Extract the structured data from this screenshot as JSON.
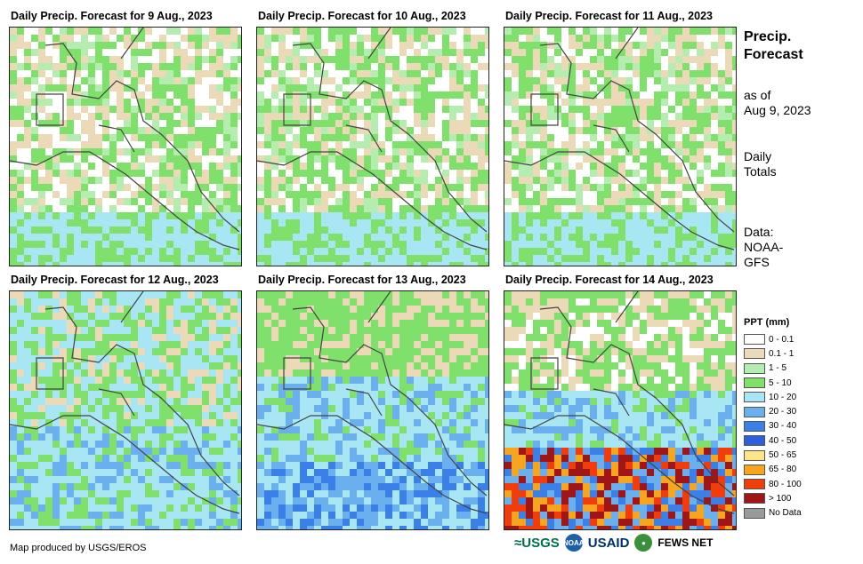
{
  "panels": [
    {
      "title": "Daily Precip. Forecast for 9 Aug., 2023"
    },
    {
      "title": "Daily Precip. Forecast for 10 Aug., 2023"
    },
    {
      "title": "Daily Precip. Forecast for 11 Aug., 2023"
    },
    {
      "title": "Daily Precip. Forecast for 12 Aug., 2023"
    },
    {
      "title": "Daily Precip. Forecast for 13 Aug., 2023"
    },
    {
      "title": "Daily Precip. Forecast for 14 Aug., 2023"
    }
  ],
  "side": {
    "title_line1": "Precip.",
    "title_line2": "Forecast",
    "asof_line1": "as of",
    "asof_line2": "Aug 9, 2023",
    "totals_line1": "Daily",
    "totals_line2": "Totals",
    "data_line1": "Data:",
    "data_line2": "NOAA-",
    "data_line3": "GFS"
  },
  "legend": {
    "title": "PPT (mm)",
    "items": [
      {
        "label": "0 - 0.1",
        "color": "#ffffff"
      },
      {
        "label": "0.1 - 1",
        "color": "#ecd9b7"
      },
      {
        "label": "1 - 5",
        "color": "#b5ecb0"
      },
      {
        "label": "5 - 10",
        "color": "#7fe06b"
      },
      {
        "label": "10 - 20",
        "color": "#a9e6f4"
      },
      {
        "label": "20 - 30",
        "color": "#6bb0ee"
      },
      {
        "label": "30 - 40",
        "color": "#3b80e8"
      },
      {
        "label": "40 - 50",
        "color": "#2e5fdc"
      },
      {
        "label": "50 - 65",
        "color": "#fde58a"
      },
      {
        "label": "65 - 80",
        "color": "#f7a41f"
      },
      {
        "label": "80 - 100",
        "color": "#f23c0c"
      },
      {
        "label": "> 100",
        "color": "#a01515"
      },
      {
        "label": "No Data",
        "color": "#9a9a9a"
      }
    ]
  },
  "footer": {
    "credit": "Map produced by USGS/EROS",
    "logo_usgs": "≈USGS",
    "logo_noaa": "NOAA",
    "logo_usaid": "USAID",
    "logo_fews": "FEWS NET"
  }
}
